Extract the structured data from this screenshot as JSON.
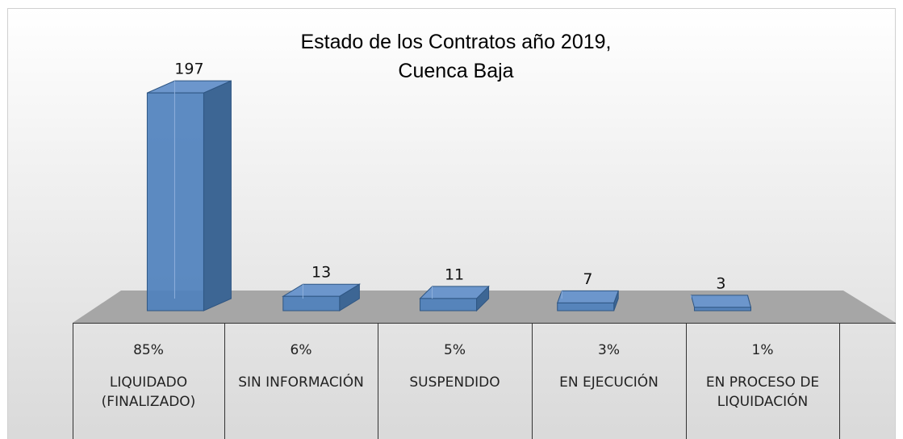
{
  "chart_data": {
    "type": "bar3d",
    "title": "Estado de los Contratos año 2019,\nCuenca Baja",
    "categories": [
      "LIQUIDADO (FINALIZADO)",
      "SIN INFORMACIÓN",
      "SUSPENDIDO",
      "EN EJECUCIÓN",
      "EN PROCESO DE LIQUIDACIÓN"
    ],
    "values": [
      197,
      13,
      11,
      7,
      3
    ],
    "shares": [
      85,
      6,
      5,
      3,
      1
    ],
    "share_labels": [
      "85%",
      "6%",
      "5%",
      "3%",
      "1%"
    ],
    "color": "#4f81bd"
  }
}
